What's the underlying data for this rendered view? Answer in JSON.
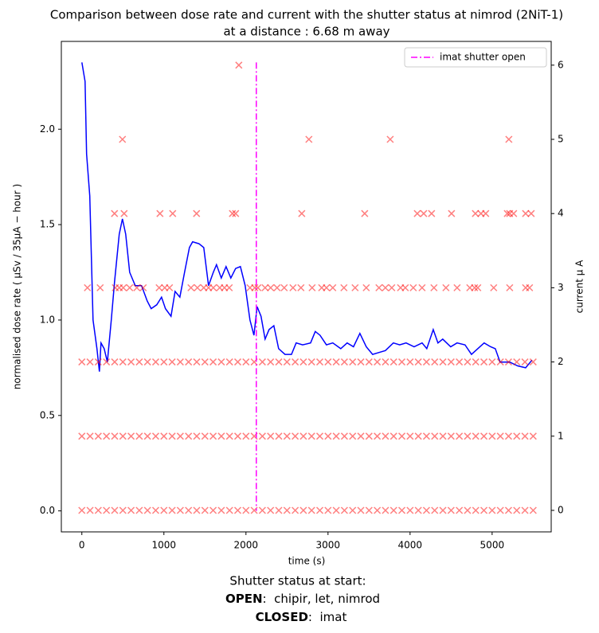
{
  "chart_data": {
    "type": "line",
    "title": "Comparison between dose rate and current with the shutter status at nimrod (2NiT-1)",
    "subtitle": "at a distance : 6.68 m away",
    "x_label": "time (s)",
    "y_label": "normalised dose rate ( μSv / 35μA − hour )",
    "y2_label": "current μ A",
    "xlim": [
      -250,
      5720
    ],
    "ylim": [
      -0.11,
      2.46
    ],
    "y2lim": [
      -0.29,
      6.32
    ],
    "xticks": [
      0,
      1000,
      2000,
      3000,
      4000,
      5000
    ],
    "yticks": [
      {
        "value": 0,
        "label": "0.0"
      },
      {
        "value": 0.5,
        "label": "0.5"
      },
      {
        "value": 1,
        "label": "1.0"
      },
      {
        "value": 1.5,
        "label": "1.5"
      },
      {
        "value": 2,
        "label": "2.0"
      }
    ],
    "y2ticks": [
      0,
      1,
      2,
      3,
      4,
      5,
      6
    ],
    "y_label_color": "#0000ff",
    "y2_label_color": "#ff0000",
    "legend": "upper right",
    "vlines": [
      {
        "name": "imat shutter open",
        "x": 2126,
        "color": "#ff00ff"
      }
    ],
    "series": [
      {
        "type": "line",
        "color": "#0000ff",
        "axis": "y",
        "x": [
          0,
          39,
          58,
          97,
          136,
          184,
          214,
          233,
          272,
          311,
          359,
          398,
          456,
          495,
          534,
          583,
          651,
          728,
          796,
          845,
          913,
          971,
          1019,
          1087,
          1136,
          1194,
          1252,
          1311,
          1350,
          1427,
          1486,
          1544,
          1602,
          1641,
          1699,
          1757,
          1816,
          1874,
          1932,
          1990,
          2049,
          2097,
          2136,
          2184,
          2233,
          2282,
          2340,
          2398,
          2476,
          2554,
          2612,
          2690,
          2787,
          2845,
          2903,
          2981,
          3058,
          3155,
          3233,
          3311,
          3388,
          3466,
          3544,
          3621,
          3699,
          3796,
          3874,
          3951,
          4049,
          4146,
          4204,
          4282,
          4340,
          4398,
          4495,
          4573,
          4670,
          4748,
          4825,
          4903,
          4981,
          5039,
          5097,
          5214,
          5311,
          5408,
          5486
        ],
        "values": [
          2.35,
          2.25,
          1.87,
          1.65,
          1.0,
          0.85,
          0.73,
          0.88,
          0.85,
          0.78,
          1.0,
          1.2,
          1.45,
          1.53,
          1.45,
          1.25,
          1.18,
          1.18,
          1.1,
          1.06,
          1.08,
          1.12,
          1.06,
          1.02,
          1.15,
          1.12,
          1.25,
          1.38,
          1.41,
          1.4,
          1.38,
          1.18,
          1.25,
          1.29,
          1.22,
          1.28,
          1.22,
          1.27,
          1.28,
          1.18,
          1.0,
          0.92,
          1.07,
          1.02,
          0.9,
          0.95,
          0.97,
          0.85,
          0.82,
          0.82,
          0.88,
          0.87,
          0.88,
          0.94,
          0.92,
          0.87,
          0.88,
          0.85,
          0.88,
          0.86,
          0.93,
          0.86,
          0.82,
          0.83,
          0.84,
          0.88,
          0.87,
          0.88,
          0.86,
          0.88,
          0.85,
          0.95,
          0.88,
          0.9,
          0.86,
          0.88,
          0.87,
          0.82,
          0.85,
          0.88,
          0.86,
          0.85,
          0.78,
          0.78,
          0.76,
          0.75,
          0.79
        ]
      },
      {
        "type": "scatter",
        "color": "#ff0000",
        "axis": "y2",
        "x": [
          0,
          100,
          200,
          300,
          400,
          500,
          600,
          700,
          800,
          900,
          1000,
          1100,
          1200,
          1300,
          1400,
          1500,
          1600,
          1700,
          1800,
          1900,
          2000,
          2100,
          2200,
          2300,
          2400,
          2500,
          2600,
          2700,
          2800,
          2900,
          3000,
          3100,
          3200,
          3300,
          3400,
          3500,
          3600,
          3700,
          3800,
          3900,
          4000,
          4100,
          4200,
          4300,
          4400,
          4500,
          4600,
          4700,
          4800,
          4900,
          5000,
          5100,
          5200,
          5300,
          5400,
          5500,
          0,
          100,
          200,
          300,
          400,
          500,
          600,
          700,
          800,
          900,
          1000,
          1100,
          1200,
          1300,
          1400,
          1500,
          1600,
          1700,
          1800,
          1900,
          2000,
          2100,
          2200,
          2300,
          2400,
          2500,
          2600,
          2700,
          2800,
          2900,
          3000,
          3100,
          3200,
          3300,
          3400,
          3500,
          3600,
          3700,
          3800,
          3900,
          4000,
          4100,
          4200,
          4300,
          4400,
          4500,
          4600,
          4700,
          4800,
          4900,
          5000,
          5100,
          5200,
          5300,
          5400,
          5500,
          0,
          100,
          200,
          300,
          400,
          500,
          600,
          700,
          800,
          900,
          1000,
          1100,
          1200,
          1300,
          1400,
          1500,
          1600,
          1700,
          1800,
          1900,
          2000,
          2100,
          2200,
          2300,
          2400,
          2500,
          2600,
          2700,
          2800,
          2900,
          3000,
          3100,
          3200,
          3300,
          3400,
          3500,
          3600,
          3700,
          3800,
          3900,
          4000,
          4100,
          4200,
          4300,
          4400,
          4500,
          4600,
          4700,
          4800,
          4900,
          5000,
          5100,
          5200,
          5300,
          5400,
          5500,
          68,
          223,
          408,
          456,
          505,
          583,
          670,
          748,
          942,
          1010,
          1068,
          1330,
          1408,
          1486,
          1544,
          1602,
          1680,
          1738,
          1796,
          2049,
          2107,
          2146,
          2233,
          2301,
          2379,
          2466,
          2573,
          2670,
          2806,
          2923,
          2981,
          3058,
          3194,
          3330,
          3466,
          3621,
          3699,
          3777,
          3884,
          3942,
          4039,
          4146,
          4291,
          4437,
          4573,
          4728,
          4786,
          4825,
          5019,
          5214,
          5408,
          5456,
          398,
          515,
          952,
          1107,
          1398,
          1835,
          1874,
          2680,
          3447,
          4088,
          4166,
          4262,
          4505,
          4796,
          4864,
          4922,
          5185,
          5214,
          5262,
          5408,
          5476,
          495,
          2767,
          3758,
          5204,
          1913
        ],
        "values": [
          0,
          0,
          0,
          0,
          0,
          0,
          0,
          0,
          0,
          0,
          0,
          0,
          0,
          0,
          0,
          0,
          0,
          0,
          0,
          0,
          0,
          0,
          0,
          0,
          0,
          0,
          0,
          0,
          0,
          0,
          0,
          0,
          0,
          0,
          0,
          0,
          0,
          0,
          0,
          0,
          0,
          0,
          0,
          0,
          0,
          0,
          0,
          0,
          0,
          0,
          0,
          0,
          0,
          0,
          0,
          0,
          1,
          1,
          1,
          1,
          1,
          1,
          1,
          1,
          1,
          1,
          1,
          1,
          1,
          1,
          1,
          1,
          1,
          1,
          1,
          1,
          1,
          1,
          1,
          1,
          1,
          1,
          1,
          1,
          1,
          1,
          1,
          1,
          1,
          1,
          1,
          1,
          1,
          1,
          1,
          1,
          1,
          1,
          1,
          1,
          1,
          1,
          1,
          1,
          1,
          1,
          1,
          1,
          1,
          1,
          1,
          1,
          2,
          2,
          2,
          2,
          2,
          2,
          2,
          2,
          2,
          2,
          2,
          2,
          2,
          2,
          2,
          2,
          2,
          2,
          2,
          2,
          2,
          2,
          2,
          2,
          2,
          2,
          2,
          2,
          2,
          2,
          2,
          2,
          2,
          2,
          2,
          2,
          2,
          2,
          2,
          2,
          2,
          2,
          2,
          2,
          2,
          2,
          2,
          2,
          2,
          2,
          2,
          2,
          2,
          2,
          2,
          2,
          3,
          3,
          3,
          3,
          3,
          3,
          3,
          3,
          3,
          3,
          3,
          3,
          3,
          3,
          3,
          3,
          3,
          3,
          3,
          3,
          3,
          3,
          3,
          3,
          3,
          3,
          3,
          3,
          3,
          3,
          3,
          3,
          3,
          3,
          3,
          3,
          3,
          3,
          3,
          3,
          3,
          3,
          3,
          3,
          3,
          3,
          3,
          3,
          3,
          3,
          3,
          3,
          4,
          4,
          4,
          4,
          4,
          4,
          4,
          4,
          4,
          4,
          4,
          4,
          4,
          4,
          4,
          4,
          4,
          4,
          4,
          4,
          4,
          5,
          5,
          5,
          5,
          6
        ]
      }
    ],
    "annotation": {
      "heading": "Shutter status at start:",
      "open_label": "OPEN",
      "open_text": ":  chipir, let, nimrod",
      "closed_label": "CLOSED",
      "closed_text": ":  imat"
    }
  }
}
